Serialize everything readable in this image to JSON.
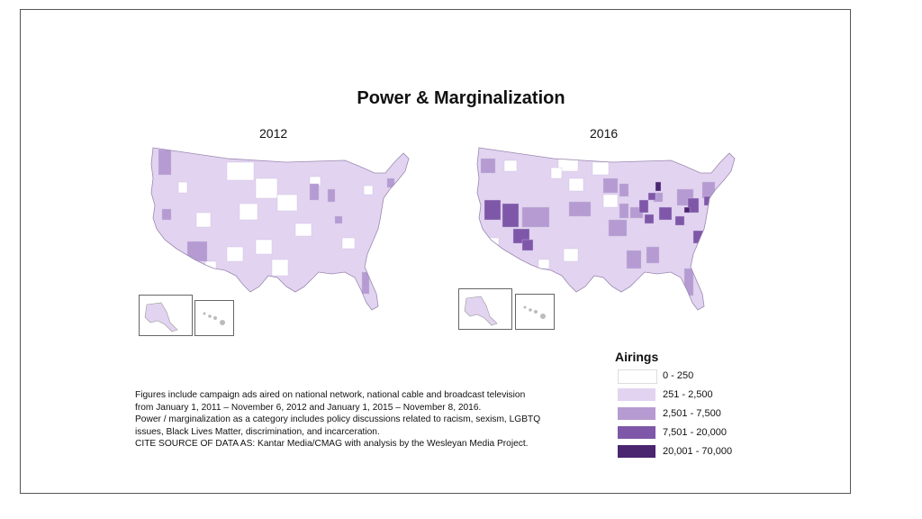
{
  "title": "Power & Marginalization",
  "maps": [
    {
      "label": "2012"
    },
    {
      "label": "2016"
    }
  ],
  "legend": {
    "title": "Airings",
    "items": [
      {
        "label": "0 - 250",
        "color": "#ffffff"
      },
      {
        "label": "251 - 2,500",
        "color": "#e2d4f0"
      },
      {
        "label": "2,501 - 7,500",
        "color": "#b59bd1"
      },
      {
        "label": "7,501 - 20,000",
        "color": "#7f57a8"
      },
      {
        "label": "20,001 - 70,000",
        "color": "#4a2570"
      }
    ]
  },
  "notes": [
    "Figures include campaign ads aired on national network,  national cable and broadcast television",
    "from January 1, 2011 – November  6, 2012 and January 1, 2015 – November 8, 2016.",
    "Power / marginalization as a category includes policy discussions related to racism, sexism, LGBTQ",
    "issues, Black Lives Matter, discrimination, and incarceration.",
    "CITE SOURCE OF DATA AS: Kantar Media/CMAG with analysis by the Wesleyan Media Project."
  ]
}
